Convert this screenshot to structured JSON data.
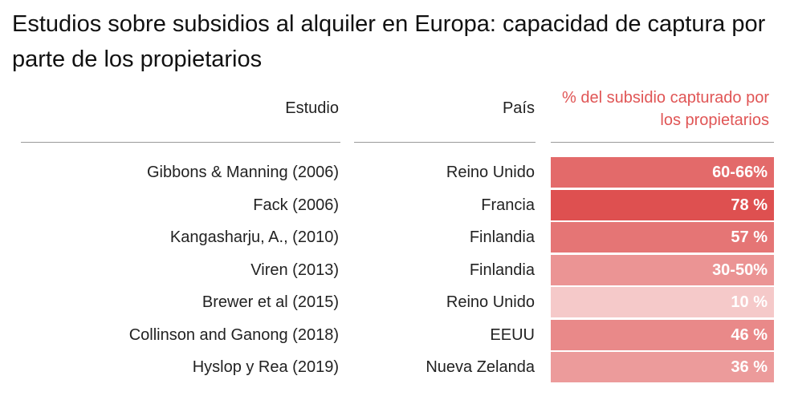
{
  "chart_data": {
    "type": "table",
    "title": "Estudios sobre subsidios al alquiler en Europa: capacidad de captura por parte de los propietarios",
    "columns": [
      "Estudio",
      "País",
      "% del subsidio capturado por los propietarios"
    ],
    "rows": [
      {
        "study": "Gibbons & Manning (2006)",
        "country": "Reino Unido",
        "label": "60-66%",
        "value": 63
      },
      {
        "study": "Fack (2006)",
        "country": "Francia",
        "label": "78 %",
        "value": 78
      },
      {
        "study": "Kangasharju, A., (2010)",
        "country": "Finlandia",
        "label": "57 %",
        "value": 57
      },
      {
        "study": "Viren (2013)",
        "country": "Finlandia",
        "label": "30-50%",
        "value": 40
      },
      {
        "study": "Brewer et al (2015)",
        "country": "Reino Unido",
        "label": "10 %",
        "value": 10
      },
      {
        "study": "Collinson and Ganong (2018)",
        "country": "EEUU",
        "label": "46 %",
        "value": 46
      },
      {
        "study": "Hyslop y Rea (2019)",
        "country": "Nueva Zelanda",
        "label": "36 %",
        "value": 36
      }
    ],
    "color_scale": {
      "min_value": 0,
      "max_value": 80,
      "base_color": "#dd4c4c"
    }
  }
}
